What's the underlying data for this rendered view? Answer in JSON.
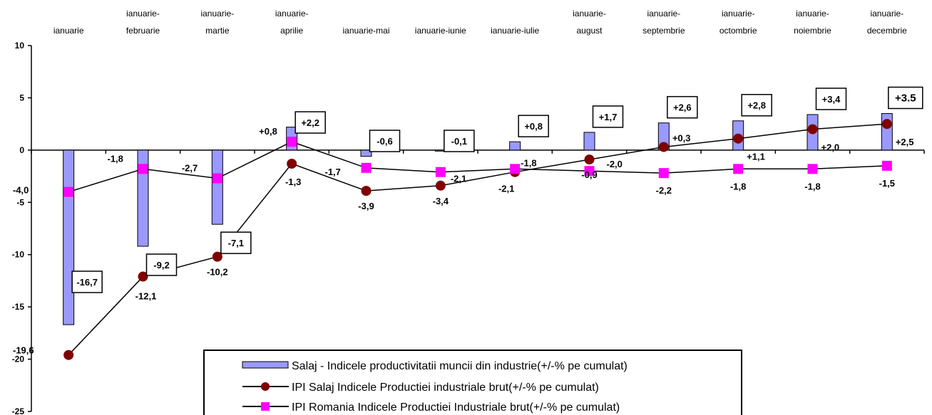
{
  "chart_data": {
    "type": "bar",
    "categories": [
      [
        "ianuarie"
      ],
      [
        "ianuarie-",
        "februarie"
      ],
      [
        "ianuarie-",
        "martie"
      ],
      [
        "ianuarie-",
        "aprilie"
      ],
      [
        "ianuarie-mai"
      ],
      [
        "ianuarie-iunie"
      ],
      [
        "ianuarie-iulie"
      ],
      [
        "ianuarie-",
        "august"
      ],
      [
        "ianuarie-",
        "septembrie"
      ],
      [
        "ianuarie-",
        "octombrie"
      ],
      [
        "ianuarie-",
        "noiembrie"
      ],
      [
        "ianuarie-",
        "decembrie"
      ]
    ],
    "ylim": [
      -25,
      10
    ],
    "yticks": [
      10,
      5,
      0,
      -5,
      -10,
      -15,
      -20,
      -25
    ],
    "grid": false,
    "legend_position": "bottom-center",
    "series": [
      {
        "name": "Salaj - Indicele productivitatii muncii din industrie(+/-% pe cumulat)",
        "kind": "bar",
        "color": "#9999ff",
        "values": [
          -16.7,
          -9.2,
          -7.1,
          2.2,
          -0.6,
          -0.1,
          0.8,
          1.7,
          2.6,
          2.8,
          3.4,
          3.5
        ],
        "labels": [
          "-16,7",
          "-9,2",
          "-7,1",
          "+2,2",
          "-0,6",
          "-0,1",
          "+0,8",
          "+1,7",
          "+2,6",
          "+2,8",
          "+3,4",
          "+3.5"
        ]
      },
      {
        "name": "IPI Salaj Indicele Productiei industriale brut(+/-% pe cumulat)",
        "kind": "line",
        "color": "#800000",
        "values": [
          -19.6,
          -12.1,
          -10.2,
          -1.3,
          -3.9,
          -3.4,
          -2.1,
          -0.9,
          0.3,
          1.1,
          2.0,
          2.5
        ],
        "labels": [
          "-19,6",
          "-12,1",
          "-10,2",
          "-1,3",
          "-3,9",
          "-3,4",
          "-2,1",
          "-0,9",
          "+0,3",
          "+1,1",
          "+2,0",
          "+2,5"
        ]
      },
      {
        "name": "IPI Romania Indicele Productiei Industriale brut(+/-% pe cumulat)",
        "kind": "line",
        "color": "#ff00ff",
        "values": [
          -4.0,
          -1.8,
          -2.7,
          0.8,
          -1.7,
          -2.1,
          -1.8,
          -2.0,
          -2.2,
          -1.8,
          -1.8,
          -1.5
        ],
        "labels": [
          "-4,0",
          "-1,8",
          "-2,7",
          "+0,8",
          "-1,7",
          "-2,1",
          "-1,8",
          "-2,0",
          "-2,2",
          "-1,8",
          "-1,8",
          "-1,5"
        ]
      }
    ]
  }
}
